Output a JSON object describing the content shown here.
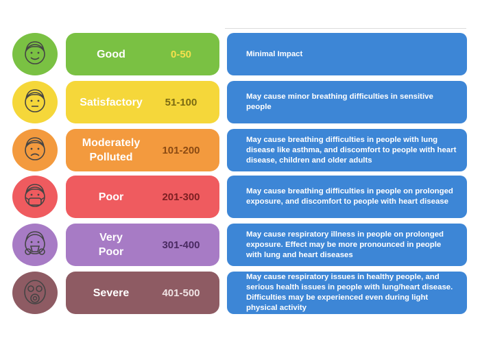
{
  "rows": [
    {
      "category": "Good",
      "range": "0-50",
      "impact": "Minimal Impact",
      "face_color": "#7ac143",
      "pill_color": "#7ac143",
      "range_color": "#f4e04d",
      "icon": "happy-face-icon"
    },
    {
      "category": "Satisfactory",
      "range": "51-100",
      "impact": "May cause minor breathing difficulties in sensitive people",
      "face_color": "#f5d73a",
      "pill_color": "#f5d73a",
      "range_color": "#7a6a12",
      "icon": "neutral-face-icon"
    },
    {
      "category": "Moderately\nPolluted",
      "range": "101-200",
      "impact": "May cause breathing difficulties in people with lung disease like asthma, and discomfort to people with heart disease, children and older adults",
      "face_color": "#f39a3e",
      "pill_color": "#f39a3e",
      "range_color": "#8a4a13",
      "icon": "sad-face-icon"
    },
    {
      "category": "Poor",
      "range": "201-300",
      "impact": "May cause breathing difficulties in people on prolonged exposure, and discomfort to people with heart disease",
      "face_color": "#ef5b5f",
      "pill_color": "#ef5b5f",
      "range_color": "#7c1f22",
      "icon": "mask-face-icon"
    },
    {
      "category": "Very\nPoor",
      "range": "301-400",
      "impact": "May cause respiratory illness in people on prolonged exposure. Effect may be more pronounced in people with lung and heart diseases",
      "face_color": "#a77bc5",
      "pill_color": "#a77bc5",
      "range_color": "#4a2a62",
      "icon": "respirator-face-icon"
    },
    {
      "category": "Severe",
      "range": "401-500",
      "impact": "May cause respiratory issues in healthy people, and serious health issues in people with lung/heart disease. Difficulties may be experienced even during light physical activity",
      "face_color": "#8e5b63",
      "pill_color": "#8e5b63",
      "range_color": "#f0e3e4",
      "icon": "gas-mask-face-icon"
    }
  ],
  "impact_color": "#3d86d6"
}
